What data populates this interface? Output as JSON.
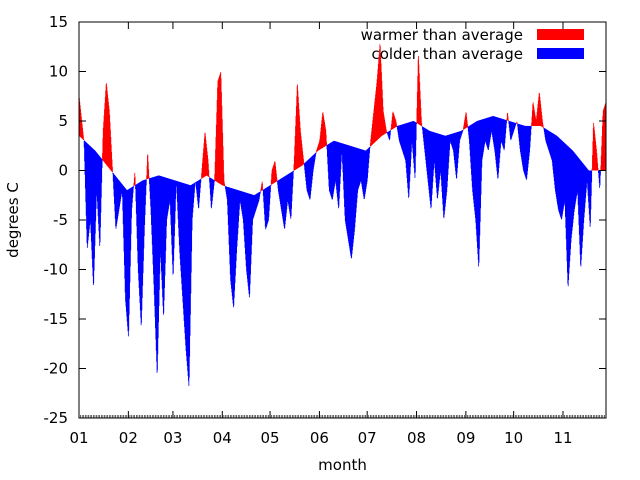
{
  "chart_data": {
    "type": "area",
    "title": "",
    "xlabel": "month",
    "ylabel": "degrees C",
    "xlim": [
      0,
      331
    ],
    "ylim": [
      -25,
      15
    ],
    "grid": false,
    "legend_position": "top-right",
    "colors": {
      "warmer": "#ff0000",
      "colder": "#0000ff"
    },
    "x_ticks": [
      {
        "label": "01",
        "day": 0
      },
      {
        "label": "02",
        "day": 31
      },
      {
        "label": "03",
        "day": 59
      },
      {
        "label": "04",
        "day": 90
      },
      {
        "label": "05",
        "day": 120
      },
      {
        "label": "06",
        "day": 151
      },
      {
        "label": "07",
        "day": 181
      },
      {
        "label": "08",
        "day": 212
      },
      {
        "label": "09",
        "day": 243
      },
      {
        "label": "10",
        "day": 273
      },
      {
        "label": "11",
        "day": 304
      }
    ],
    "y_ticks": [
      15,
      10,
      5,
      0,
      -5,
      -10,
      -15,
      -20,
      -25
    ],
    "series": [
      {
        "name": "warmer than average",
        "color": "#ff0000"
      },
      {
        "name": "colder than average",
        "color": "#0000ff"
      }
    ],
    "average": [
      [
        0,
        3.5
      ],
      [
        10,
        2
      ],
      [
        20,
        0
      ],
      [
        30,
        -2
      ],
      [
        40,
        -1
      ],
      [
        50,
        -0.5
      ],
      [
        60,
        -1
      ],
      [
        70,
        -1.5
      ],
      [
        80,
        -0.5
      ],
      [
        90,
        -1.5
      ],
      [
        100,
        -2
      ],
      [
        110,
        -2.5
      ],
      [
        120,
        -1.5
      ],
      [
        130,
        -0.5
      ],
      [
        140,
        0.5
      ],
      [
        150,
        2
      ],
      [
        160,
        3
      ],
      [
        170,
        2.5
      ],
      [
        180,
        2
      ],
      [
        190,
        3.5
      ],
      [
        200,
        4.5
      ],
      [
        210,
        5
      ],
      [
        220,
        4
      ],
      [
        230,
        3.5
      ],
      [
        240,
        4
      ],
      [
        250,
        5
      ],
      [
        260,
        5.5
      ],
      [
        270,
        5
      ],
      [
        280,
        4.5
      ],
      [
        290,
        4.5
      ],
      [
        300,
        3.5
      ],
      [
        310,
        2
      ],
      [
        320,
        0
      ],
      [
        331,
        0
      ]
    ],
    "observed": [
      [
        0,
        7.5
      ],
      [
        3,
        3
      ],
      [
        5,
        -8
      ],
      [
        7,
        -5
      ],
      [
        9,
        -12
      ],
      [
        11,
        -2
      ],
      [
        13,
        -8
      ],
      [
        15,
        4
      ],
      [
        17,
        9
      ],
      [
        19,
        6
      ],
      [
        21,
        0
      ],
      [
        23,
        -6
      ],
      [
        25,
        -4
      ],
      [
        27,
        -2
      ],
      [
        29,
        -13
      ],
      [
        31,
        -17
      ],
      [
        33,
        -4
      ],
      [
        35,
        0
      ],
      [
        37,
        -10
      ],
      [
        39,
        -16
      ],
      [
        41,
        -6
      ],
      [
        43,
        2
      ],
      [
        45,
        -4
      ],
      [
        47,
        -12
      ],
      [
        49,
        -21
      ],
      [
        51,
        -8
      ],
      [
        53,
        -15
      ],
      [
        55,
        -5
      ],
      [
        57,
        -3
      ],
      [
        59,
        -11
      ],
      [
        61,
        -1
      ],
      [
        63,
        -8
      ],
      [
        65,
        -13
      ],
      [
        67,
        -18
      ],
      [
        69,
        -22
      ],
      [
        71,
        -5
      ],
      [
        73,
        -1
      ],
      [
        75,
        -4
      ],
      [
        77,
        0
      ],
      [
        79,
        4
      ],
      [
        81,
        1
      ],
      [
        83,
        -4
      ],
      [
        85,
        -1
      ],
      [
        87,
        9
      ],
      [
        89,
        10
      ],
      [
        91,
        -1
      ],
      [
        93,
        -3
      ],
      [
        95,
        -11
      ],
      [
        97,
        -14
      ],
      [
        99,
        -8
      ],
      [
        101,
        -3
      ],
      [
        103,
        -5
      ],
      [
        105,
        -10
      ],
      [
        107,
        -13
      ],
      [
        109,
        -5
      ],
      [
        111,
        -4
      ],
      [
        113,
        -3
      ],
      [
        115,
        -1
      ],
      [
        117,
        -6
      ],
      [
        119,
        -5
      ],
      [
        121,
        0
      ],
      [
        123,
        1
      ],
      [
        125,
        -2
      ],
      [
        127,
        -4
      ],
      [
        129,
        -6
      ],
      [
        131,
        -3
      ],
      [
        133,
        -5
      ],
      [
        135,
        1
      ],
      [
        137,
        9
      ],
      [
        139,
        4
      ],
      [
        141,
        1
      ],
      [
        143,
        -2
      ],
      [
        145,
        -3
      ],
      [
        147,
        0
      ],
      [
        149,
        2
      ],
      [
        151,
        3
      ],
      [
        153,
        6
      ],
      [
        155,
        4
      ],
      [
        157,
        -2
      ],
      [
        159,
        -3
      ],
      [
        161,
        -1
      ],
      [
        163,
        -4
      ],
      [
        165,
        2
      ],
      [
        167,
        -5
      ],
      [
        169,
        -7
      ],
      [
        171,
        -9
      ],
      [
        173,
        -6
      ],
      [
        175,
        -2
      ],
      [
        177,
        -1
      ],
      [
        179,
        -3
      ],
      [
        181,
        -1
      ],
      [
        183,
        3
      ],
      [
        185,
        6
      ],
      [
        187,
        9
      ],
      [
        189,
        13
      ],
      [
        191,
        6
      ],
      [
        193,
        4
      ],
      [
        195,
        3
      ],
      [
        197,
        6
      ],
      [
        199,
        5
      ],
      [
        201,
        3
      ],
      [
        203,
        2
      ],
      [
        205,
        1
      ],
      [
        207,
        -3
      ],
      [
        209,
        3
      ],
      [
        211,
        -1
      ],
      [
        213,
        12
      ],
      [
        215,
        5
      ],
      [
        217,
        2
      ],
      [
        219,
        -1
      ],
      [
        221,
        -4
      ],
      [
        223,
        1
      ],
      [
        225,
        -3
      ],
      [
        227,
        0
      ],
      [
        229,
        -5
      ],
      [
        231,
        -2
      ],
      [
        233,
        3
      ],
      [
        235,
        2
      ],
      [
        237,
        -1
      ],
      [
        239,
        3
      ],
      [
        241,
        4
      ],
      [
        243,
        6
      ],
      [
        245,
        3
      ],
      [
        247,
        -2
      ],
      [
        249,
        -5
      ],
      [
        251,
        -10
      ],
      [
        253,
        1
      ],
      [
        255,
        3
      ],
      [
        257,
        2
      ],
      [
        259,
        4
      ],
      [
        261,
        2
      ],
      [
        263,
        -1
      ],
      [
        265,
        3
      ],
      [
        267,
        2
      ],
      [
        269,
        6
      ],
      [
        271,
        3
      ],
      [
        273,
        4
      ],
      [
        275,
        5
      ],
      [
        277,
        2
      ],
      [
        279,
        0
      ],
      [
        281,
        -1
      ],
      [
        283,
        2
      ],
      [
        285,
        7
      ],
      [
        287,
        5
      ],
      [
        289,
        8
      ],
      [
        291,
        5
      ],
      [
        293,
        3
      ],
      [
        295,
        2
      ],
      [
        297,
        1
      ],
      [
        299,
        -2
      ],
      [
        301,
        -4
      ],
      [
        303,
        -5
      ],
      [
        305,
        -3
      ],
      [
        307,
        -12
      ],
      [
        309,
        -7
      ],
      [
        311,
        -4
      ],
      [
        313,
        -2
      ],
      [
        315,
        -10
      ],
      [
        317,
        -5
      ],
      [
        319,
        -1
      ],
      [
        321,
        -6
      ],
      [
        323,
        5
      ],
      [
        325,
        2
      ],
      [
        327,
        -2
      ],
      [
        329,
        6
      ],
      [
        331,
        7
      ]
    ]
  }
}
